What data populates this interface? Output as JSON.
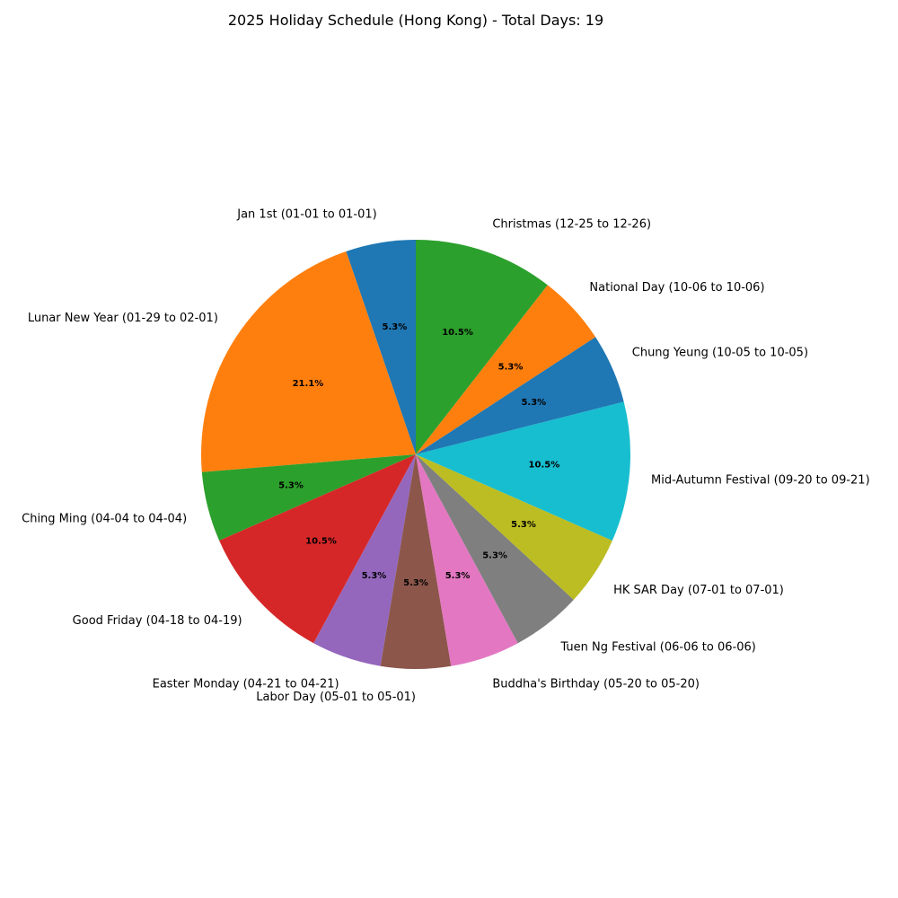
{
  "chart_data": {
    "type": "pie",
    "title": "2025 Holiday Schedule (Hong Kong) - Total Days: 19",
    "start_angle_deg": 90,
    "direction": "counterclockwise",
    "slices": [
      {
        "label": "Jan 1st (01-01 to 01-01)",
        "value": 1,
        "pct_label": "5.3%",
        "color": "#1f77b4"
      },
      {
        "label": "Lunar New Year (01-29 to 02-01)",
        "value": 4,
        "pct_label": "21.1%",
        "color": "#ff7f0e"
      },
      {
        "label": "Ching Ming (04-04 to 04-04)",
        "value": 1,
        "pct_label": "5.3%",
        "color": "#2ca02c"
      },
      {
        "label": "Good Friday (04-18 to 04-19)",
        "value": 2,
        "pct_label": "10.5%",
        "color": "#d62728"
      },
      {
        "label": "Easter Monday (04-21 to 04-21)",
        "value": 1,
        "pct_label": "5.3%",
        "color": "#9467bd"
      },
      {
        "label": "Labor Day (05-01 to 05-01)",
        "value": 1,
        "pct_label": "5.3%",
        "color": "#8c564b"
      },
      {
        "label": "Buddha's Birthday (05-20 to 05-20)",
        "value": 1,
        "pct_label": "5.3%",
        "color": "#e377c2"
      },
      {
        "label": "Tuen Ng Festival (06-06 to 06-06)",
        "value": 1,
        "pct_label": "5.3%",
        "color": "#7f7f7f"
      },
      {
        "label": "HK SAR Day (07-01 to 07-01)",
        "value": 1,
        "pct_label": "5.3%",
        "color": "#bcbd22"
      },
      {
        "label": "Mid-Autumn Festival (09-20 to 09-21)",
        "value": 2,
        "pct_label": "10.5%",
        "color": "#17becf"
      },
      {
        "label": "Chung Yeung (10-05 to 10-05)",
        "value": 1,
        "pct_label": "5.3%",
        "color": "#1f77b4"
      },
      {
        "label": "National Day (10-06 to 10-06)",
        "value": 1,
        "pct_label": "5.3%",
        "color": "#ff7f0e"
      },
      {
        "label": "Christmas (12-25 to 12-26)",
        "value": 2,
        "pct_label": "10.5%",
        "color": "#2ca02c"
      }
    ]
  }
}
